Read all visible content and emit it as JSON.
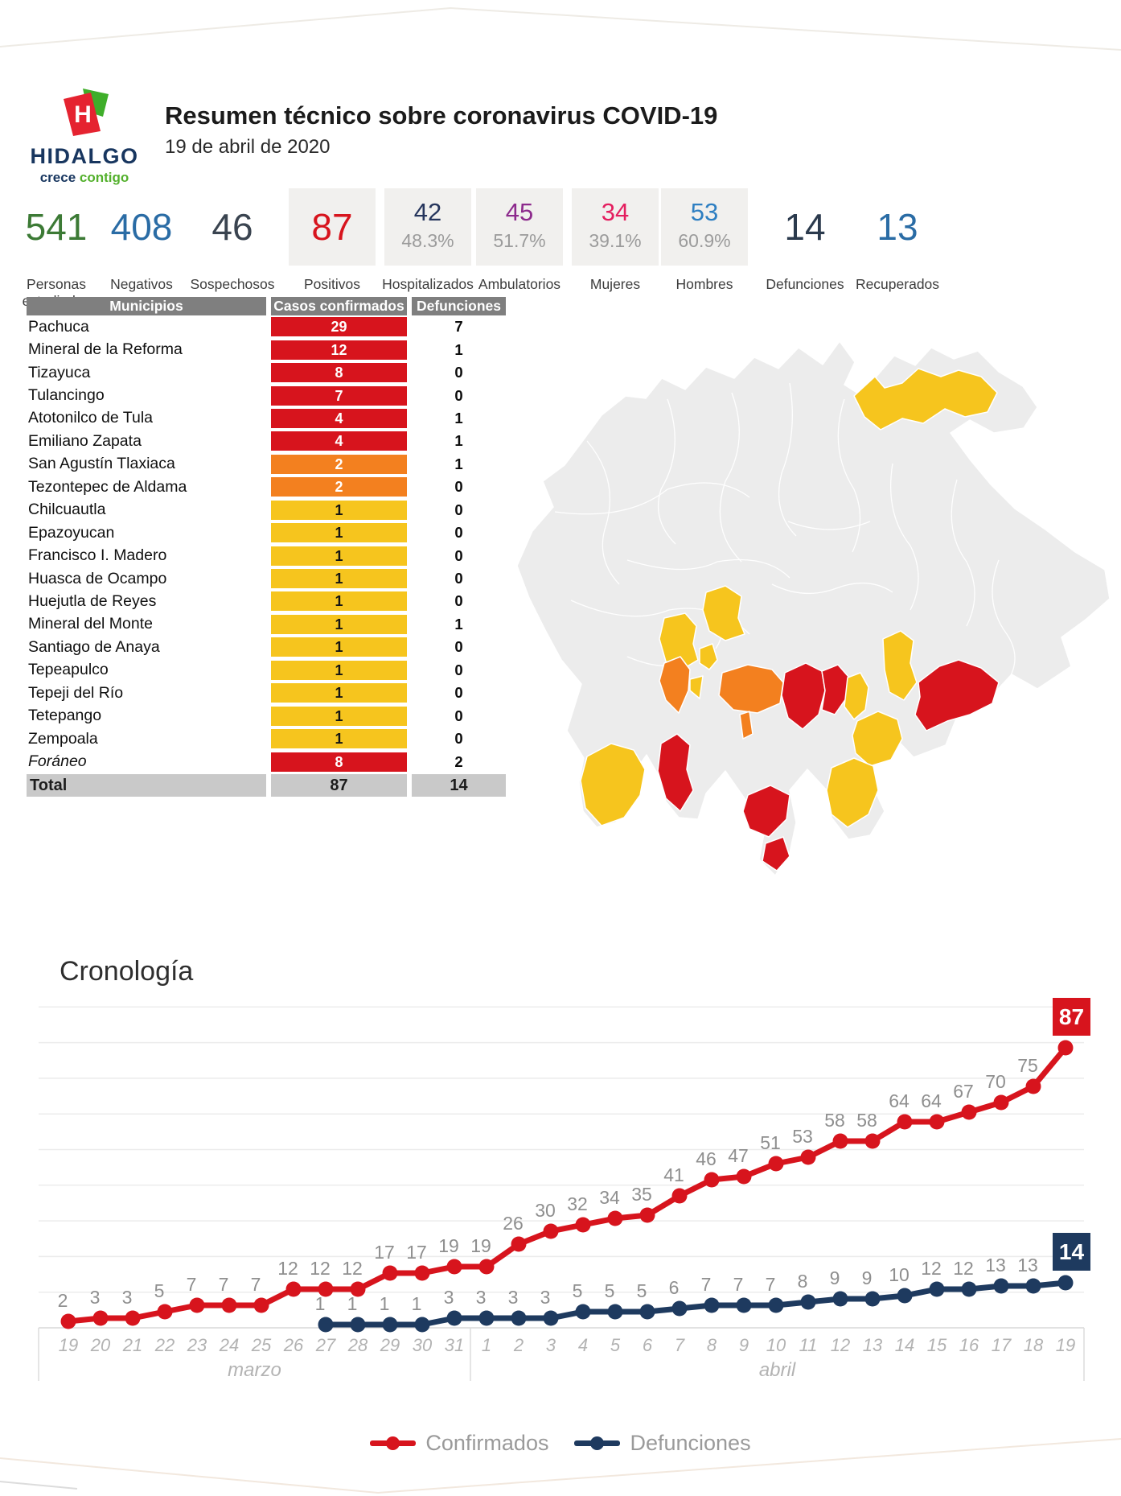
{
  "header": {
    "logo_name": "HIDALGO",
    "logo_tagline_1": "crece",
    "logo_tagline_2": "contigo",
    "title": "Resumen técnico sobre coronavirus COVID-19",
    "date": "19 de abril de 2020"
  },
  "stats": {
    "items": [
      {
        "value": "541",
        "label": "Personas estudiadas",
        "color": "#3c7a35",
        "boxed": false
      },
      {
        "value": "408",
        "label": "Negativos",
        "color": "#2a6ca5",
        "boxed": false
      },
      {
        "value": "46",
        "label": "Sospechosos",
        "color": "#3a4450",
        "boxed": false
      },
      {
        "value": "87",
        "label": "Positivos",
        "color": "#d7141d",
        "boxed": true
      },
      {
        "value": "42",
        "pct": "48.3%",
        "label": "Hospitalizados",
        "color": "#25355c",
        "boxed": true
      },
      {
        "value": "45",
        "pct": "51.7%",
        "label": "Ambulatorios",
        "color": "#8d2b8d",
        "boxed": true
      },
      {
        "value": "34",
        "pct": "39.1%",
        "label": "Mujeres",
        "color": "#e41e5f",
        "boxed": true
      },
      {
        "value": "53",
        "pct": "60.9%",
        "label": "Hombres",
        "color": "#2e7fc2",
        "boxed": true
      },
      {
        "value": "14",
        "label": "Defunciones",
        "color": "#2b3a4d",
        "boxed": false
      },
      {
        "value": "13",
        "label": "Recuperados",
        "color": "#2a6ca5",
        "boxed": false
      }
    ]
  },
  "table": {
    "headers": [
      "Municipios",
      "Casos confirmados",
      "Defunciones"
    ],
    "rows": [
      {
        "name": "Pachuca",
        "cases": 29,
        "deaths": 7,
        "level": "red"
      },
      {
        "name": "Mineral de la Reforma",
        "cases": 12,
        "deaths": 1,
        "level": "red"
      },
      {
        "name": "Tizayuca",
        "cases": 8,
        "deaths": 0,
        "level": "red"
      },
      {
        "name": "Tulancingo",
        "cases": 7,
        "deaths": 0,
        "level": "red"
      },
      {
        "name": "Atotonilco de Tula",
        "cases": 4,
        "deaths": 1,
        "level": "red"
      },
      {
        "name": "Emiliano Zapata",
        "cases": 4,
        "deaths": 1,
        "level": "red"
      },
      {
        "name": "San Agustín Tlaxiaca",
        "cases": 2,
        "deaths": 1,
        "level": "orange"
      },
      {
        "name": "Tezontepec de Aldama",
        "cases": 2,
        "deaths": 0,
        "level": "orange"
      },
      {
        "name": "Chilcuautla",
        "cases": 1,
        "deaths": 0,
        "level": "yellow"
      },
      {
        "name": "Epazoyucan",
        "cases": 1,
        "deaths": 0,
        "level": "yellow"
      },
      {
        "name": "Francisco I. Madero",
        "cases": 1,
        "deaths": 0,
        "level": "yellow"
      },
      {
        "name": "Huasca de Ocampo",
        "cases": 1,
        "deaths": 0,
        "level": "yellow"
      },
      {
        "name": "Huejutla de Reyes",
        "cases": 1,
        "deaths": 0,
        "level": "yellow"
      },
      {
        "name": "Mineral del Monte",
        "cases": 1,
        "deaths": 1,
        "level": "yellow"
      },
      {
        "name": "Santiago de Anaya",
        "cases": 1,
        "deaths": 0,
        "level": "yellow"
      },
      {
        "name": "Tepeapulco",
        "cases": 1,
        "deaths": 0,
        "level": "yellow"
      },
      {
        "name": "Tepeji del Río",
        "cases": 1,
        "deaths": 0,
        "level": "yellow"
      },
      {
        "name": "Tetepango",
        "cases": 1,
        "deaths": 0,
        "level": "yellow"
      },
      {
        "name": "Zempoala",
        "cases": 1,
        "deaths": 0,
        "level": "yellow"
      },
      {
        "name": "Foráneo",
        "cases": 8,
        "deaths": 2,
        "level": "red",
        "italic": true
      }
    ],
    "total": {
      "name": "Total",
      "cases": 87,
      "deaths": 14
    }
  },
  "map": {
    "region": "Hidalgo choropleth of confirmed cases",
    "palette": {
      "none": "#ececec",
      "yellow": "#f6c51e",
      "orange": "#f3801f",
      "red": "#d7141d",
      "border": "#ffffff"
    }
  },
  "chart_data": {
    "type": "line",
    "title": "Cronología",
    "x": [
      "19",
      "20",
      "21",
      "22",
      "23",
      "24",
      "25",
      "26",
      "27",
      "28",
      "29",
      "30",
      "31",
      "1",
      "2",
      "3",
      "4",
      "5",
      "6",
      "7",
      "8",
      "9",
      "10",
      "11",
      "12",
      "13",
      "14",
      "15",
      "16",
      "17",
      "18",
      "19"
    ],
    "month_sections": [
      {
        "label": "marzo",
        "start": 0,
        "end": 12
      },
      {
        "label": "abril",
        "start": 13,
        "end": 31
      }
    ],
    "series": [
      {
        "name": "Confirmados",
        "color": "#d7141d",
        "start_index": 0,
        "values": [
          2,
          3,
          3,
          5,
          7,
          7,
          7,
          12,
          12,
          12,
          17,
          17,
          19,
          19,
          26,
          30,
          32,
          34,
          35,
          41,
          46,
          47,
          51,
          53,
          58,
          58,
          64,
          64,
          67,
          70,
          75,
          87
        ]
      },
      {
        "name": "Defunciones",
        "color": "#1e3a5f",
        "start_index": 8,
        "values": [
          1,
          1,
          1,
          1,
          3,
          3,
          3,
          3,
          5,
          5,
          5,
          6,
          7,
          7,
          7,
          8,
          9,
          9,
          10,
          12,
          12,
          13,
          13,
          14
        ]
      }
    ],
    "ylim": [
      0,
      95
    ],
    "grid": true,
    "legend_position": "bottom"
  },
  "palette": {
    "red": "#d7141d",
    "orange": "#f3801f",
    "yellow": "#f6c51e",
    "navy": "#1e3a5f",
    "table_header_bg": "#7f7f7f",
    "total_row_bg": "#c9c9c9",
    "stat_box_bg": "#f1f0ee"
  }
}
